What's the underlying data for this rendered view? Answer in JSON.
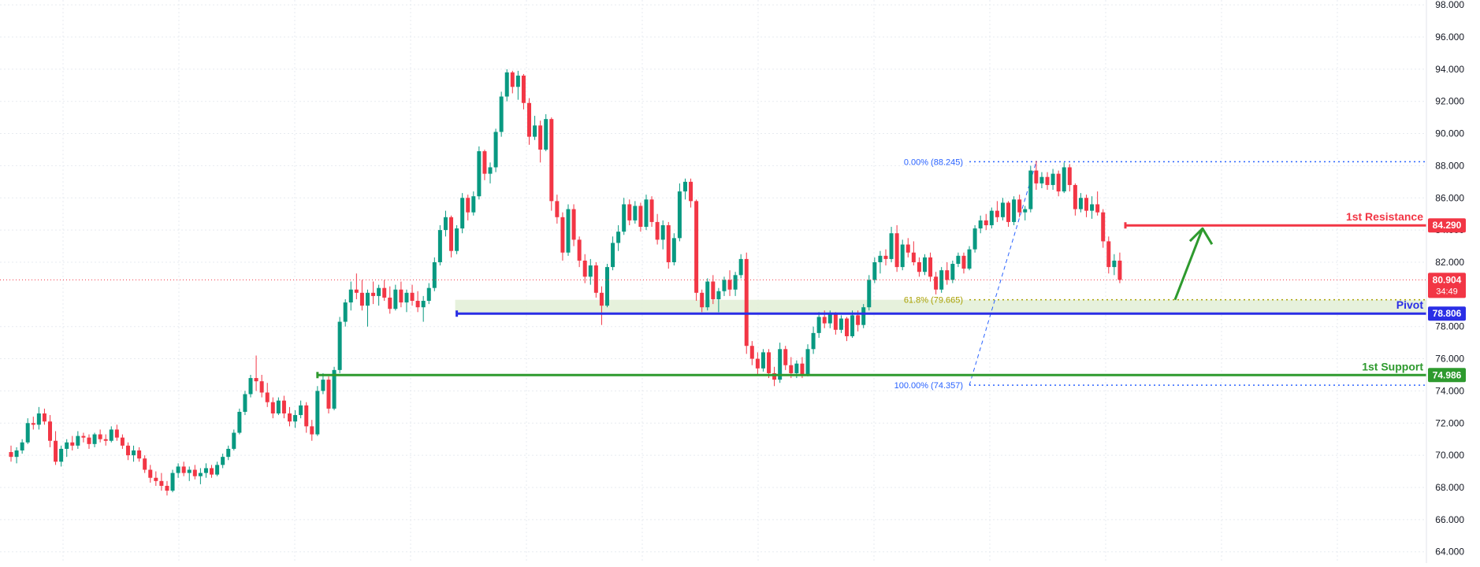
{
  "chart_data": {
    "type": "candlestick",
    "ylim": [
      63.3,
      98.3
    ],
    "grid": true,
    "colors": {
      "up": "#089981",
      "down": "#f23645",
      "resistance": "#f23645",
      "pivot": "#2a2ee6",
      "support": "#2e9a2e",
      "fib": "#2962ff",
      "fib_mid": "#a9a000",
      "zone_fill": "#e3f0d8",
      "arrow": "#2e9a2e",
      "grid": "#e7ebf0",
      "axis_text": "#131722"
    },
    "y_ticks": [
      {
        "value": 98,
        "label": "98.000"
      },
      {
        "value": 96,
        "label": "96.000"
      },
      {
        "value": 94,
        "label": "94.000"
      },
      {
        "value": 92,
        "label": "92.000"
      },
      {
        "value": 90,
        "label": "90.000"
      },
      {
        "value": 88,
        "label": "88.000"
      },
      {
        "value": 86,
        "label": "86.000"
      },
      {
        "value": 84,
        "label": "84.000"
      },
      {
        "value": 82,
        "label": "82.000"
      },
      {
        "value": 78,
        "label": "78.000"
      },
      {
        "value": 76,
        "label": "76.000"
      },
      {
        "value": 74,
        "label": "74.000"
      },
      {
        "value": 72,
        "label": "72.000"
      },
      {
        "value": 70,
        "label": "70.000"
      },
      {
        "value": 68,
        "label": "68.000"
      },
      {
        "value": 66,
        "label": "66.000"
      },
      {
        "value": 64,
        "label": "64.000"
      }
    ],
    "levels": [
      {
        "name": "1st Resistance",
        "value": 84.29,
        "label": "84.290",
        "color": "#f23645",
        "start": 200
      },
      {
        "name": "Pivot",
        "value": 78.806,
        "label": "78.806",
        "color": "#2a2ee6",
        "start": 80
      },
      {
        "name": "1st Support",
        "value": 74.986,
        "label": "74.986",
        "color": "#2e9a2e",
        "start": 55
      }
    ],
    "current_price": {
      "value": 80.904,
      "label": "80.904",
      "countdown": "34:49"
    },
    "fibonacci": {
      "start_index": 172,
      "levels": [
        {
          "ratio_label": "0.00% (88.245)",
          "value": 88.245
        },
        {
          "ratio_label": "61.8% (79.665)",
          "value": 79.665
        },
        {
          "ratio_label": "100.00% (74.357)",
          "value": 74.357
        }
      ]
    },
    "candles": [
      [
        70.2,
        70.6,
        69.6,
        69.9
      ],
      [
        69.9,
        70.5,
        69.5,
        70.3
      ],
      [
        70.3,
        71.0,
        70.1,
        70.8
      ],
      [
        70.8,
        72.3,
        70.7,
        72.0
      ],
      [
        72.0,
        72.4,
        71.6,
        71.9
      ],
      [
        71.9,
        73.0,
        71.6,
        72.6
      ],
      [
        72.6,
        72.9,
        71.9,
        72.1
      ],
      [
        72.1,
        72.5,
        70.5,
        70.9
      ],
      [
        70.9,
        71.5,
        69.4,
        69.6
      ],
      [
        69.6,
        70.6,
        69.3,
        70.4
      ],
      [
        70.4,
        71.0,
        69.9,
        70.8
      ],
      [
        70.8,
        71.2,
        70.3,
        70.6
      ],
      [
        70.6,
        71.5,
        70.4,
        71.2
      ],
      [
        71.2,
        71.4,
        70.8,
        71.1
      ],
      [
        71.1,
        71.3,
        70.4,
        70.7
      ],
      [
        70.7,
        71.4,
        70.5,
        71.3
      ],
      [
        71.3,
        71.6,
        70.8,
        71.0
      ],
      [
        71.0,
        71.3,
        70.6,
        70.9
      ],
      [
        70.9,
        71.8,
        70.8,
        71.6
      ],
      [
        71.6,
        71.9,
        70.9,
        71.1
      ],
      [
        71.1,
        71.3,
        70.4,
        70.6
      ],
      [
        70.6,
        70.8,
        69.7,
        70.0
      ],
      [
        70.0,
        70.6,
        69.6,
        70.3
      ],
      [
        70.3,
        70.5,
        69.6,
        69.8
      ],
      [
        69.8,
        70.0,
        68.9,
        69.1
      ],
      [
        69.1,
        69.4,
        68.3,
        68.6
      ],
      [
        68.6,
        69.0,
        68.1,
        68.4
      ],
      [
        68.4,
        68.9,
        67.8,
        68.1
      ],
      [
        68.1,
        68.4,
        67.5,
        67.8
      ],
      [
        67.8,
        69.1,
        67.7,
        68.9
      ],
      [
        68.9,
        69.5,
        68.6,
        69.3
      ],
      [
        69.3,
        69.6,
        68.7,
        68.9
      ],
      [
        68.9,
        69.3,
        68.4,
        69.1
      ],
      [
        69.1,
        69.4,
        68.5,
        68.7
      ],
      [
        68.7,
        69.2,
        68.2,
        68.9
      ],
      [
        68.9,
        69.5,
        68.6,
        69.2
      ],
      [
        69.2,
        69.4,
        68.6,
        68.8
      ],
      [
        68.8,
        69.6,
        68.7,
        69.4
      ],
      [
        69.4,
        70.1,
        69.2,
        69.9
      ],
      [
        69.9,
        70.6,
        69.7,
        70.4
      ],
      [
        70.4,
        71.6,
        70.3,
        71.4
      ],
      [
        71.4,
        72.9,
        71.3,
        72.7
      ],
      [
        72.7,
        74.0,
        72.5,
        73.8
      ],
      [
        73.8,
        75.0,
        73.6,
        74.8
      ],
      [
        74.8,
        76.2,
        74.0,
        74.6
      ],
      [
        74.6,
        75.0,
        73.6,
        73.9
      ],
      [
        73.9,
        74.5,
        73.0,
        73.3
      ],
      [
        73.3,
        73.6,
        72.3,
        72.6
      ],
      [
        72.6,
        73.6,
        72.5,
        73.4
      ],
      [
        73.4,
        73.7,
        72.3,
        72.6
      ],
      [
        72.6,
        73.0,
        71.8,
        72.1
      ],
      [
        72.1,
        72.8,
        71.7,
        72.5
      ],
      [
        72.5,
        73.4,
        72.3,
        73.1
      ],
      [
        73.1,
        73.3,
        71.4,
        71.8
      ],
      [
        71.8,
        72.2,
        70.9,
        71.3
      ],
      [
        71.3,
        74.3,
        71.2,
        74.0
      ],
      [
        74.0,
        75.1,
        73.8,
        74.7
      ],
      [
        74.7,
        74.9,
        72.6,
        72.9
      ],
      [
        72.9,
        75.5,
        72.8,
        75.3
      ],
      [
        75.3,
        78.6,
        75.1,
        78.3
      ],
      [
        78.3,
        79.7,
        78.0,
        79.5
      ],
      [
        79.5,
        80.8,
        79.0,
        80.3
      ],
      [
        80.3,
        81.3,
        79.7,
        80.1
      ],
      [
        80.1,
        80.9,
        79.0,
        79.3
      ],
      [
        79.3,
        80.3,
        78.0,
        80.1
      ],
      [
        80.1,
        80.8,
        79.4,
        79.9
      ],
      [
        79.9,
        80.6,
        79.3,
        80.4
      ],
      [
        80.4,
        80.9,
        79.6,
        79.8
      ],
      [
        79.8,
        80.5,
        78.8,
        79.1
      ],
      [
        79.1,
        80.6,
        79.0,
        80.3
      ],
      [
        80.3,
        80.8,
        79.2,
        79.5
      ],
      [
        79.5,
        80.3,
        78.9,
        80.1
      ],
      [
        80.1,
        80.6,
        79.3,
        79.6
      ],
      [
        79.6,
        80.2,
        78.9,
        79.2
      ],
      [
        79.2,
        79.9,
        78.3,
        79.6
      ],
      [
        79.6,
        80.7,
        79.4,
        80.4
      ],
      [
        80.4,
        82.3,
        80.2,
        82.0
      ],
      [
        82.0,
        84.3,
        81.8,
        84.0
      ],
      [
        84.0,
        85.2,
        83.6,
        84.8
      ],
      [
        84.8,
        84.9,
        82.3,
        82.7
      ],
      [
        82.7,
        84.3,
        82.5,
        84.1
      ],
      [
        84.1,
        86.3,
        83.8,
        86.0
      ],
      [
        86.0,
        86.2,
        84.6,
        85.1
      ],
      [
        85.1,
        86.4,
        84.9,
        86.1
      ],
      [
        86.1,
        89.2,
        85.9,
        88.9
      ],
      [
        88.9,
        89.0,
        87.1,
        87.5
      ],
      [
        87.5,
        88.2,
        86.9,
        87.9
      ],
      [
        87.9,
        90.3,
        87.6,
        90.1
      ],
      [
        90.1,
        92.6,
        89.8,
        92.3
      ],
      [
        92.3,
        94.0,
        92.0,
        93.8
      ],
      [
        93.8,
        93.9,
        92.5,
        92.9
      ],
      [
        92.9,
        93.9,
        92.1,
        93.6
      ],
      [
        93.6,
        93.7,
        91.5,
        91.9
      ],
      [
        91.9,
        92.2,
        89.3,
        89.8
      ],
      [
        89.8,
        91.1,
        89.6,
        90.5
      ],
      [
        90.5,
        90.8,
        88.2,
        89.0
      ],
      [
        89.0,
        91.2,
        88.9,
        90.9
      ],
      [
        90.9,
        91.0,
        85.2,
        85.8
      ],
      [
        85.8,
        86.2,
        84.4,
        84.8
      ],
      [
        84.8,
        85.1,
        82.1,
        82.6
      ],
      [
        82.6,
        85.6,
        82.4,
        85.3
      ],
      [
        85.3,
        85.6,
        83.0,
        83.4
      ],
      [
        83.4,
        83.6,
        81.7,
        82.1
      ],
      [
        82.1,
        82.5,
        80.7,
        81.1
      ],
      [
        81.1,
        82.2,
        80.6,
        81.8
      ],
      [
        81.8,
        82.0,
        79.8,
        80.1
      ],
      [
        80.1,
        80.5,
        78.1,
        79.3
      ],
      [
        79.3,
        81.9,
        79.2,
        81.7
      ],
      [
        81.7,
        83.6,
        81.5,
        83.2
      ],
      [
        83.2,
        84.3,
        82.7,
        83.9
      ],
      [
        83.9,
        86.0,
        83.7,
        85.6
      ],
      [
        85.6,
        85.9,
        84.3,
        84.6
      ],
      [
        84.6,
        85.8,
        84.4,
        85.5
      ],
      [
        85.5,
        85.7,
        83.9,
        84.2
      ],
      [
        84.2,
        86.2,
        84.0,
        85.9
      ],
      [
        85.9,
        86.1,
        84.2,
        84.5
      ],
      [
        84.5,
        85.0,
        83.1,
        83.4
      ],
      [
        83.4,
        84.6,
        82.8,
        84.3
      ],
      [
        84.3,
        84.5,
        81.6,
        82.0
      ],
      [
        82.0,
        83.8,
        81.8,
        83.5
      ],
      [
        83.5,
        86.9,
        83.3,
        86.4
      ],
      [
        86.4,
        87.2,
        85.9,
        87.0
      ],
      [
        87.0,
        87.2,
        85.4,
        85.8
      ],
      [
        85.8,
        85.9,
        79.6,
        80.1
      ],
      [
        80.1,
        80.3,
        78.9,
        79.2
      ],
      [
        79.2,
        81.0,
        79.0,
        80.8
      ],
      [
        80.8,
        81.2,
        79.4,
        79.7
      ],
      [
        79.7,
        80.4,
        78.9,
        80.2
      ],
      [
        80.2,
        81.1,
        79.9,
        80.9
      ],
      [
        80.9,
        81.5,
        79.9,
        80.3
      ],
      [
        80.3,
        81.4,
        79.9,
        81.2
      ],
      [
        81.2,
        82.5,
        81.0,
        82.2
      ],
      [
        82.2,
        82.6,
        76.3,
        76.8
      ],
      [
        76.8,
        77.1,
        75.6,
        76.0
      ],
      [
        76.0,
        76.4,
        75.0,
        75.4
      ],
      [
        75.4,
        76.6,
        75.2,
        76.4
      ],
      [
        76.4,
        76.6,
        74.8,
        75.1
      ],
      [
        75.1,
        75.5,
        74.3,
        74.7
      ],
      [
        74.7,
        77.0,
        74.5,
        76.6
      ],
      [
        76.6,
        76.8,
        75.3,
        75.6
      ],
      [
        75.6,
        76.1,
        74.8,
        75.1
      ],
      [
        75.1,
        75.9,
        74.8,
        75.7
      ],
      [
        75.7,
        76.1,
        74.8,
        75.0
      ],
      [
        75.0,
        76.9,
        74.9,
        76.6
      ],
      [
        76.6,
        78.0,
        76.3,
        77.6
      ],
      [
        77.6,
        78.9,
        77.3,
        78.6
      ],
      [
        78.6,
        79.0,
        77.9,
        78.2
      ],
      [
        78.2,
        79.0,
        77.9,
        78.8
      ],
      [
        78.8,
        78.9,
        77.5,
        77.8
      ],
      [
        77.8,
        78.7,
        77.6,
        78.5
      ],
      [
        78.5,
        78.6,
        77.1,
        77.4
      ],
      [
        77.4,
        79.0,
        77.3,
        78.7
      ],
      [
        78.7,
        79.0,
        77.7,
        78.1
      ],
      [
        78.1,
        79.4,
        77.9,
        79.2
      ],
      [
        79.2,
        81.2,
        79.0,
        80.9
      ],
      [
        80.9,
        82.3,
        80.7,
        82.0
      ],
      [
        82.0,
        82.7,
        81.3,
        82.4
      ],
      [
        82.4,
        82.8,
        81.8,
        82.2
      ],
      [
        82.2,
        84.2,
        82.0,
        83.8
      ],
      [
        83.8,
        84.3,
        81.4,
        81.7
      ],
      [
        81.7,
        83.4,
        81.5,
        83.1
      ],
      [
        83.1,
        83.5,
        82.3,
        82.6
      ],
      [
        82.6,
        83.3,
        81.8,
        82.0
      ],
      [
        82.0,
        82.3,
        81.1,
        81.4
      ],
      [
        81.4,
        82.5,
        81.2,
        82.3
      ],
      [
        82.3,
        82.6,
        80.8,
        81.1
      ],
      [
        81.1,
        81.4,
        80.0,
        80.3
      ],
      [
        80.3,
        81.7,
        80.1,
        81.5
      ],
      [
        81.5,
        82.0,
        80.6,
        80.9
      ],
      [
        80.9,
        82.1,
        80.7,
        81.9
      ],
      [
        81.9,
        82.6,
        81.7,
        82.4
      ],
      [
        82.4,
        82.6,
        81.3,
        81.6
      ],
      [
        81.6,
        83.0,
        81.5,
        82.8
      ],
      [
        82.8,
        84.3,
        82.6,
        84.1
      ],
      [
        84.1,
        84.9,
        83.8,
        84.6
      ],
      [
        84.6,
        85.0,
        84.0,
        84.3
      ],
      [
        84.3,
        85.4,
        84.1,
        85.2
      ],
      [
        85.2,
        85.8,
        84.5,
        84.8
      ],
      [
        84.8,
        86.0,
        84.6,
        85.7
      ],
      [
        85.7,
        85.8,
        84.2,
        84.5
      ],
      [
        84.5,
        86.1,
        84.3,
        85.9
      ],
      [
        85.9,
        86.2,
        84.8,
        85.1
      ],
      [
        85.1,
        85.5,
        84.6,
        85.3
      ],
      [
        85.3,
        88.0,
        85.1,
        87.7
      ],
      [
        87.7,
        88.3,
        86.5,
        86.9
      ],
      [
        86.9,
        87.6,
        86.6,
        87.3
      ],
      [
        87.3,
        87.6,
        86.5,
        86.8
      ],
      [
        86.8,
        87.8,
        86.5,
        87.5
      ],
      [
        87.5,
        87.7,
        86.1,
        86.4
      ],
      [
        86.4,
        88.2,
        86.3,
        87.9
      ],
      [
        87.9,
        88.1,
        86.4,
        86.8
      ],
      [
        86.8,
        86.9,
        84.9,
        85.3
      ],
      [
        85.3,
        86.3,
        85.1,
        86.0
      ],
      [
        86.0,
        86.2,
        84.8,
        85.2
      ],
      [
        85.2,
        86.1,
        84.7,
        85.6
      ],
      [
        85.6,
        86.4,
        84.9,
        85.1
      ],
      [
        85.1,
        85.3,
        82.9,
        83.3
      ],
      [
        83.3,
        83.6,
        81.3,
        81.7
      ],
      [
        81.7,
        82.5,
        81.2,
        82.1
      ],
      [
        82.1,
        82.6,
        80.7,
        80.9
      ]
    ]
  }
}
